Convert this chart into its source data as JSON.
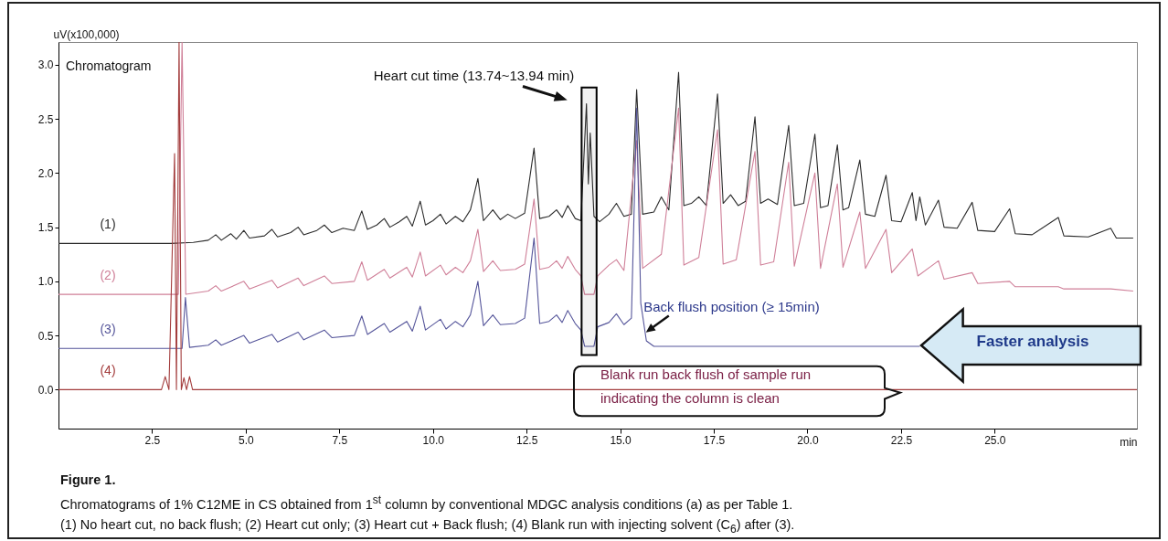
{
  "chart_data": {
    "type": "line",
    "title": "Figure 1.",
    "xlabel": "min",
    "ylabel": "uV(x100,000)",
    "xlim": [
      0,
      28.8
    ],
    "ylim": [
      -0.36,
      3.21
    ],
    "xticks": [
      2.5,
      {
        "value": 5,
        "label": "5.0"
      },
      7.5,
      {
        "value": 10,
        "label": "10.0"
      },
      12.5,
      {
        "value": 15,
        "label": "15.0"
      },
      17.5,
      {
        "value": 20,
        "label": "20.0"
      },
      22.5,
      {
        "value": 25,
        "label": "25.0"
      }
    ],
    "yticks": [
      {
        "value": 0,
        "label": "0.0"
      },
      0.5,
      {
        "value": 1,
        "label": "1.0"
      },
      1.5,
      {
        "value": 2,
        "label": "2.0"
      },
      2.5,
      {
        "value": 3,
        "label": "3.0"
      }
    ],
    "series": [
      {
        "name": "(1)",
        "color": "#2b2b2b",
        "x": [
          0,
          3.0,
          3.6,
          4.0,
          4.2,
          4.35,
          4.6,
          4.75,
          4.95,
          5.1,
          5.5,
          5.7,
          5.85,
          6.2,
          6.4,
          6.55,
          6.9,
          7.1,
          7.3,
          7.6,
          7.9,
          8.1,
          8.25,
          8.5,
          8.7,
          8.85,
          9.1,
          9.3,
          9.45,
          9.66,
          9.8,
          10.0,
          10.2,
          10.35,
          10.6,
          10.8,
          11.0,
          11.2,
          11.35,
          11.6,
          11.8,
          12.0,
          12.2,
          12.45,
          12.7,
          12.85,
          13.1,
          13.3,
          13.45,
          13.6,
          13.8,
          13.95,
          14.1,
          14.15,
          14.2,
          14.3,
          14.45,
          14.7,
          14.9,
          15.1,
          15.3,
          15.44,
          15.6,
          15.9,
          16.1,
          16.3,
          16.56,
          16.7,
          16.9,
          17.1,
          17.3,
          17.6,
          17.75,
          17.95,
          18.15,
          18.35,
          18.6,
          18.75,
          18.95,
          19.2,
          19.5,
          19.65,
          19.9,
          20.2,
          20.35,
          20.55,
          20.8,
          20.95,
          21.1,
          21.4,
          21.55,
          21.8,
          22.1,
          22.25,
          22.5,
          22.8,
          22.9,
          23.0,
          23.15,
          23.5,
          23.65,
          24.0,
          24.4,
          24.55,
          25.0,
          25.4,
          25.55,
          26.0,
          26.7,
          26.85,
          27.5,
          28.1,
          28.25,
          28.7
        ],
        "values": [
          1.35,
          1.35,
          1.36,
          1.38,
          1.43,
          1.38,
          1.44,
          1.39,
          1.47,
          1.4,
          1.42,
          1.48,
          1.41,
          1.45,
          1.5,
          1.43,
          1.47,
          1.52,
          1.45,
          1.49,
          1.47,
          1.65,
          1.48,
          1.52,
          1.58,
          1.5,
          1.55,
          1.6,
          1.51,
          1.74,
          1.52,
          1.56,
          1.62,
          1.53,
          1.6,
          1.55,
          1.66,
          1.95,
          1.56,
          1.66,
          1.57,
          1.62,
          1.58,
          1.63,
          2.23,
          1.58,
          1.6,
          1.66,
          1.59,
          1.7,
          1.58,
          1.56,
          2.64,
          1.9,
          2.37,
          1.6,
          1.55,
          1.62,
          1.72,
          1.6,
          1.62,
          2.77,
          1.62,
          1.64,
          1.78,
          1.66,
          2.93,
          1.7,
          1.72,
          1.78,
          1.7,
          2.73,
          1.72,
          1.8,
          1.7,
          1.74,
          2.52,
          1.72,
          1.76,
          1.71,
          2.44,
          1.7,
          1.72,
          2.36,
          1.68,
          1.7,
          2.26,
          1.66,
          1.68,
          2.12,
          1.62,
          1.6,
          1.98,
          1.56,
          1.55,
          1.82,
          1.56,
          1.78,
          1.52,
          1.75,
          1.5,
          1.49,
          1.73,
          1.47,
          1.46,
          1.67,
          1.44,
          1.43,
          1.59,
          1.42,
          1.41,
          1.49,
          1.4,
          1.4
        ]
      },
      {
        "name": "(2)",
        "color": "#cf7f98",
        "x": [
          0,
          3.2,
          3.3,
          3.4,
          4.0,
          4.2,
          4.35,
          4.95,
          5.1,
          5.7,
          5.85,
          6.4,
          6.55,
          7.1,
          7.3,
          7.9,
          8.1,
          8.25,
          8.7,
          8.85,
          9.3,
          9.45,
          9.66,
          9.8,
          10.2,
          10.35,
          10.6,
          10.8,
          11.0,
          11.2,
          11.35,
          11.6,
          11.8,
          12.2,
          12.45,
          12.7,
          12.85,
          13.1,
          13.3,
          13.45,
          13.6,
          13.8,
          13.95,
          14.05,
          14.3,
          14.4,
          14.7,
          14.9,
          15.1,
          15.44,
          15.6,
          16.1,
          16.56,
          16.7,
          17.1,
          17.6,
          17.75,
          18.1,
          18.6,
          18.75,
          19.1,
          19.5,
          19.65,
          20.2,
          20.35,
          20.8,
          20.95,
          21.4,
          21.55,
          22.1,
          22.25,
          22.8,
          22.95,
          23.5,
          23.65,
          24.4,
          24.55,
          25.4,
          25.55,
          26.7,
          26.85,
          28.1,
          28.7
        ],
        "values": [
          0.88,
          0.88,
          3.21,
          0.88,
          0.91,
          0.96,
          0.91,
          1.0,
          0.93,
          1.01,
          0.94,
          1.03,
          0.96,
          1.05,
          0.98,
          1.0,
          1.18,
          1.01,
          1.11,
          1.03,
          1.13,
          1.04,
          1.27,
          1.05,
          1.15,
          1.06,
          1.13,
          1.08,
          1.19,
          1.48,
          1.09,
          1.19,
          1.1,
          1.11,
          1.16,
          1.76,
          1.11,
          1.13,
          1.19,
          1.12,
          1.23,
          1.11,
          1.05,
          0.88,
          0.88,
          1.05,
          1.15,
          1.2,
          1.1,
          2.3,
          1.12,
          1.25,
          2.6,
          1.15,
          1.22,
          2.4,
          1.16,
          1.2,
          2.2,
          1.15,
          1.18,
          2.1,
          1.14,
          2.0,
          1.12,
          1.9,
          1.13,
          1.64,
          1.12,
          1.48,
          1.08,
          1.3,
          1.05,
          1.19,
          1.02,
          1.08,
          0.98,
          1.0,
          0.95,
          0.95,
          0.93,
          0.93,
          0.91
        ]
      },
      {
        "name": "(3)",
        "color": "#55559a",
        "x": [
          0,
          3.3,
          3.39,
          3.5,
          4.0,
          4.2,
          4.35,
          4.95,
          5.1,
          5.7,
          5.85,
          6.4,
          6.55,
          7.1,
          7.3,
          7.9,
          8.1,
          8.25,
          8.7,
          8.85,
          9.3,
          9.45,
          9.66,
          9.8,
          10.2,
          10.35,
          10.6,
          10.8,
          11.0,
          11.2,
          11.35,
          11.6,
          11.8,
          12.2,
          12.45,
          12.7,
          12.85,
          13.1,
          13.3,
          13.45,
          13.6,
          13.8,
          13.95,
          14.05,
          14.3,
          14.4,
          14.7,
          14.9,
          15.1,
          15.3,
          15.44,
          15.55,
          15.7,
          15.9,
          23.0
        ],
        "values": [
          0.38,
          0.38,
          0.85,
          0.39,
          0.41,
          0.46,
          0.41,
          0.5,
          0.43,
          0.51,
          0.44,
          0.53,
          0.46,
          0.55,
          0.48,
          0.5,
          0.68,
          0.51,
          0.61,
          0.53,
          0.63,
          0.54,
          0.77,
          0.55,
          0.65,
          0.56,
          0.63,
          0.58,
          0.69,
          1.0,
          0.59,
          0.69,
          0.6,
          0.61,
          0.66,
          1.4,
          0.61,
          0.63,
          0.69,
          0.62,
          0.73,
          0.61,
          0.55,
          0.4,
          0.4,
          0.58,
          0.62,
          0.7,
          0.6,
          0.66,
          2.6,
          0.8,
          0.45,
          0.4,
          0.4
        ]
      },
      {
        "name": "(4)",
        "color": "#a33c3c",
        "x": [
          0,
          2.75,
          2.85,
          2.95,
          3.1,
          3.15,
          3.22,
          3.28,
          3.35,
          3.42,
          3.5,
          3.58,
          28.8
        ],
        "values": [
          0,
          0,
          0.12,
          0,
          2.18,
          0,
          3.21,
          0,
          0.11,
          0,
          0.12,
          0,
          0
        ]
      }
    ],
    "bands": [
      {
        "axis": "x",
        "from": 13.97,
        "to": 14.37,
        "label": "Heart cut time (13.74~13.94 min)",
        "color": "#000000"
      }
    ],
    "annotations": [
      "Chromatogram",
      "Blank run back flush of sample run\nindicating the column is clean",
      {
        "text": "Back flush position (≥ 15min)",
        "x": 15.7,
        "y": 0.53
      },
      "Faster analysis",
      "Chromatograms of 1% C12ME in CS obtained from 1$^{st}$ column by conventional MDGC analysis conditions (a) as per Table 1.",
      "(1) No heart cut, no back flush; (2) Heart cut only; (3) Heart cut + Back flush;  (4)  Blank run with  injecting solvent (C$_{6}$) after  (3)."
    ]
  }
}
